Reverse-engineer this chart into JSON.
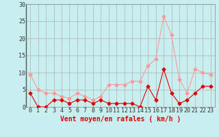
{
  "hours": [
    0,
    1,
    2,
    3,
    4,
    5,
    6,
    7,
    8,
    9,
    10,
    11,
    12,
    13,
    14,
    15,
    16,
    17,
    18,
    19,
    20,
    21,
    22,
    23
  ],
  "vent_moyen": [
    4,
    0,
    0,
    2,
    2,
    1,
    2,
    2,
    1,
    2,
    1,
    1,
    1,
    1,
    0,
    6,
    2,
    11,
    4,
    1,
    2,
    4,
    6,
    6
  ],
  "rafales": [
    9.5,
    5,
    4,
    4,
    3,
    2.5,
    4,
    3,
    2,
    3,
    6.5,
    6.5,
    6.5,
    7.5,
    7.5,
    12,
    14,
    26.5,
    21,
    8,
    4,
    11,
    10,
    9.5
  ],
  "bg_color": "#c8eef0",
  "grid_color": "#b0b0b0",
  "line_moyen_color": "#dd0000",
  "line_rafales_color": "#ff9999",
  "xlabel": "Vent moyen/en rafales ( km/h )",
  "ylim": [
    0,
    30
  ],
  "yticks": [
    0,
    5,
    10,
    15,
    20,
    25,
    30
  ],
  "xticks": [
    0,
    1,
    2,
    3,
    4,
    5,
    6,
    7,
    8,
    9,
    10,
    11,
    12,
    13,
    14,
    15,
    16,
    17,
    18,
    19,
    20,
    21,
    22,
    23
  ],
  "marker": "D",
  "markersize": 2.5,
  "linewidth": 0.8,
  "xlabel_fontsize": 7,
  "tick_fontsize": 6
}
